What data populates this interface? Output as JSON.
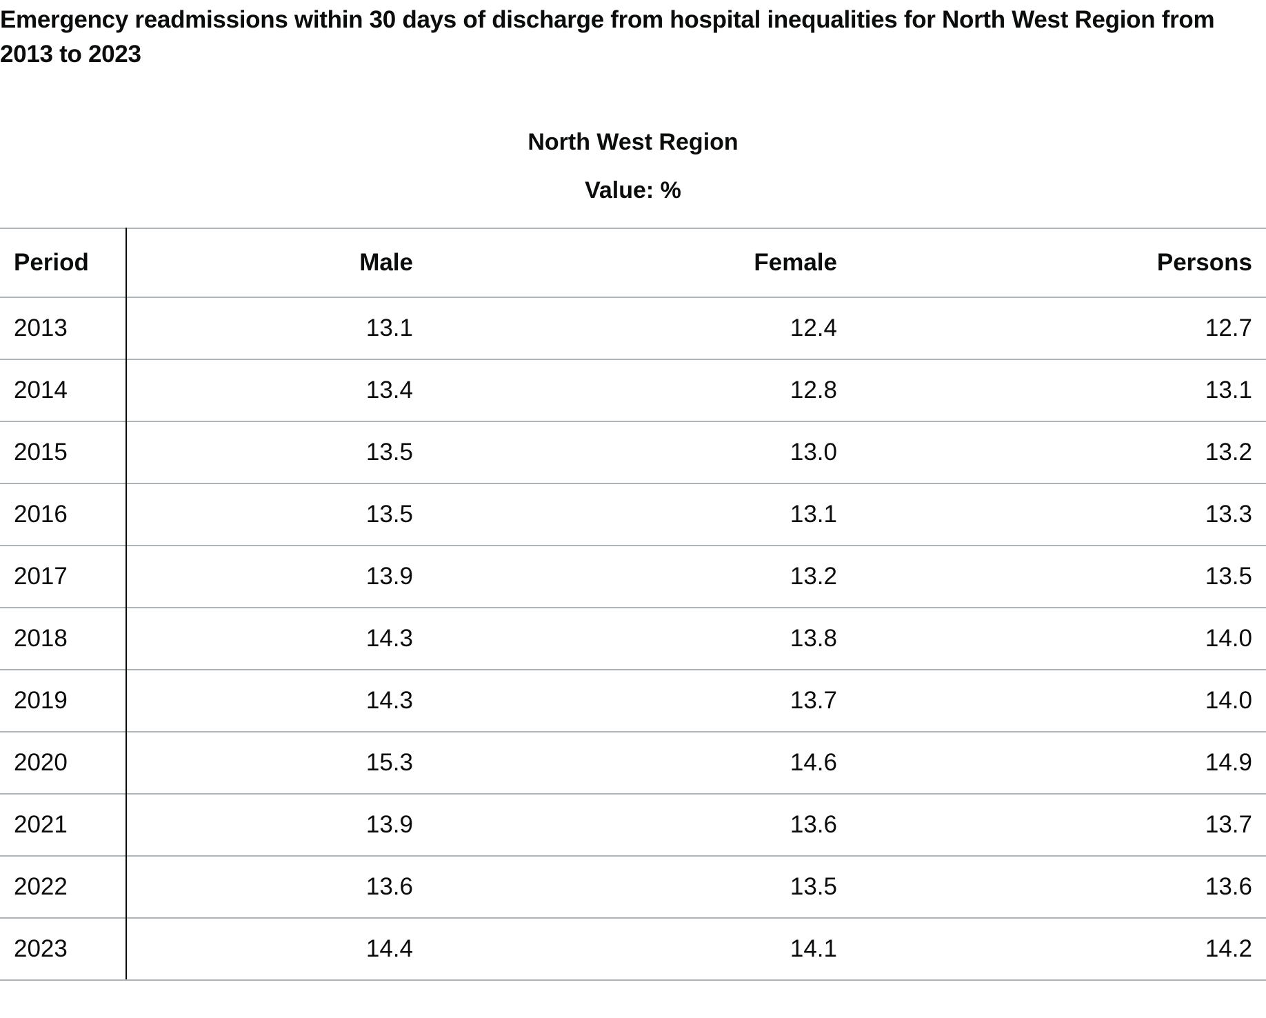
{
  "page": {
    "title": "Emergency readmissions within 30 days of discharge from hospital inequalities for North West Region from 2013 to 2023"
  },
  "chart_data": {
    "type": "table",
    "title": "Emergency readmissions within 30 days of discharge from hospital inequalities for North West Region from 2013 to 2023",
    "caption": "North West Region",
    "value_label": "Value: %",
    "columns": [
      "Period",
      "Male",
      "Female",
      "Persons"
    ],
    "rows": [
      {
        "period": "2013",
        "male": "13.1",
        "female": "12.4",
        "persons": "12.7"
      },
      {
        "period": "2014",
        "male": "13.4",
        "female": "12.8",
        "persons": "13.1"
      },
      {
        "period": "2015",
        "male": "13.5",
        "female": "13.0",
        "persons": "13.2"
      },
      {
        "period": "2016",
        "male": "13.5",
        "female": "13.1",
        "persons": "13.3"
      },
      {
        "period": "2017",
        "male": "13.9",
        "female": "13.2",
        "persons": "13.5"
      },
      {
        "period": "2018",
        "male": "14.3",
        "female": "13.8",
        "persons": "14.0"
      },
      {
        "period": "2019",
        "male": "14.3",
        "female": "13.7",
        "persons": "14.0"
      },
      {
        "period": "2020",
        "male": "15.3",
        "female": "14.6",
        "persons": "14.9"
      },
      {
        "period": "2021",
        "male": "13.9",
        "female": "13.6",
        "persons": "13.7"
      },
      {
        "period": "2022",
        "male": "13.6",
        "female": "13.5",
        "persons": "13.6"
      },
      {
        "period": "2023",
        "male": "14.4",
        "female": "14.1",
        "persons": "14.2"
      }
    ]
  }
}
